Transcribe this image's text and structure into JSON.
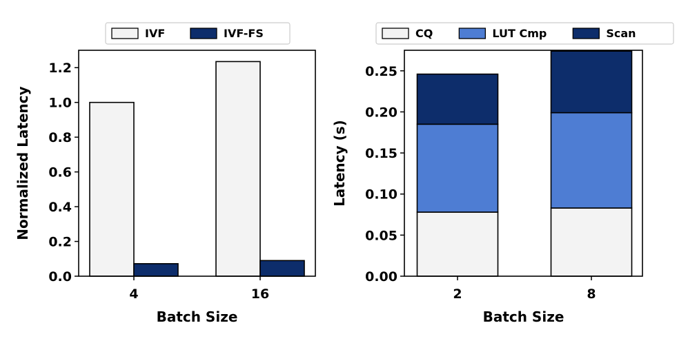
{
  "chart_data": [
    {
      "type": "bar",
      "categories": [
        "4",
        "16"
      ],
      "series": [
        {
          "name": "IVF",
          "values": [
            1.0,
            1.235
          ],
          "color": "#f3f3f3"
        },
        {
          "name": "IVF-FS",
          "values": [
            0.072,
            0.09
          ],
          "color": "#0d2d6b"
        }
      ],
      "xlabel": "Batch Size",
      "ylabel": "Normalized Latency",
      "ylim": [
        0,
        1.3
      ],
      "yticks": [
        0.0,
        0.2,
        0.4,
        0.6,
        0.8,
        1.0,
        1.2
      ],
      "ytick_labels": [
        "0.0",
        "0.2",
        "0.4",
        "0.6",
        "0.8",
        "1.0",
        "1.2"
      ],
      "legend_position": "top-center",
      "grid": false
    },
    {
      "type": "bar",
      "stacked": true,
      "categories": [
        "2",
        "8"
      ],
      "series": [
        {
          "name": "CQ",
          "values": [
            0.078,
            0.083
          ],
          "color": "#f3f3f3"
        },
        {
          "name": "LUT Cmp",
          "values": [
            0.107,
            0.116
          ],
          "color": "#4e7dd3"
        },
        {
          "name": "Scan",
          "values": [
            0.061,
            0.075
          ],
          "color": "#0d2d6b"
        }
      ],
      "xlabel": "Batch Size",
      "ylabel": "Latency (s)",
      "ylim": [
        0,
        0.275
      ],
      "yticks": [
        0.0,
        0.05,
        0.1,
        0.15,
        0.2,
        0.25
      ],
      "ytick_labels": [
        "0.00",
        "0.05",
        "0.10",
        "0.15",
        "0.20",
        "0.25"
      ],
      "legend_position": "top-center",
      "grid": false
    }
  ]
}
